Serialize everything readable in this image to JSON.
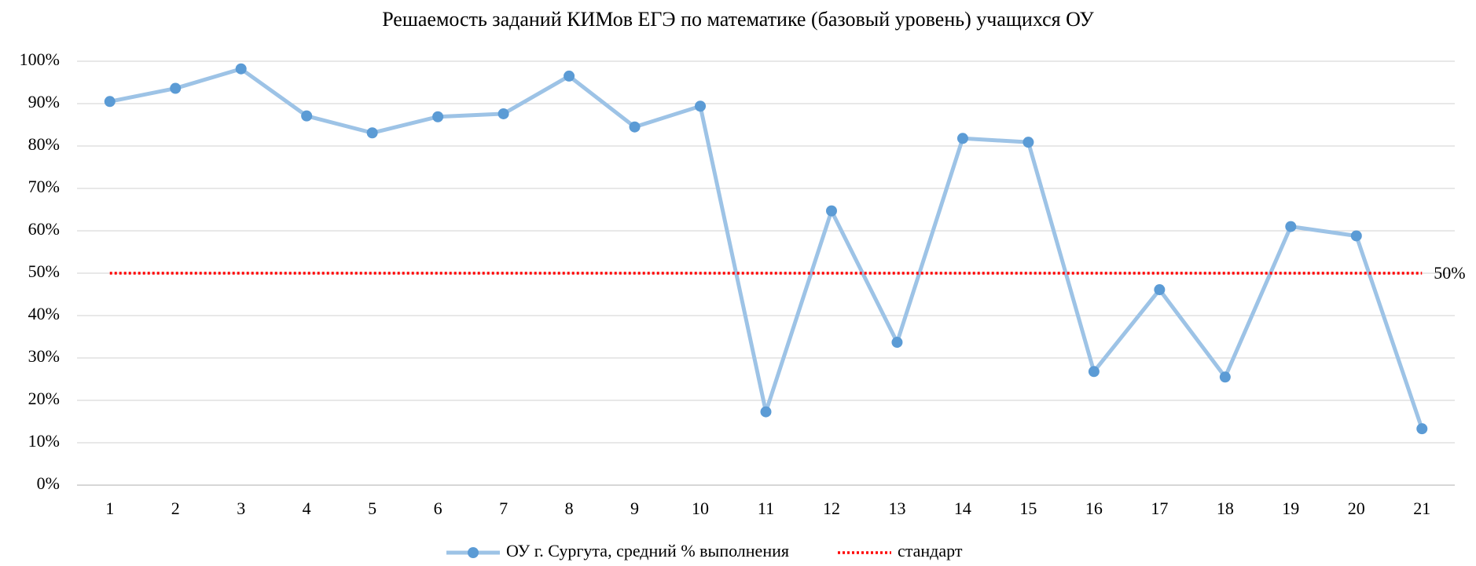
{
  "chart_data": {
    "type": "line",
    "title": "Решаемость заданий КИМов ЕГЭ по математике (базовый уровень) учащихся ОУ",
    "categories": [
      "1",
      "2",
      "3",
      "4",
      "5",
      "6",
      "7",
      "8",
      "9",
      "10",
      "11",
      "12",
      "13",
      "14",
      "15",
      "16",
      "17",
      "18",
      "19",
      "20",
      "21"
    ],
    "series": [
      {
        "name": "ОУ г. Сургута, средний % выполнения",
        "color": "#9dc3e6",
        "marker_color": "#5b9bd5",
        "style": "solid",
        "values": [
          90.5,
          93.6,
          98.2,
          87.1,
          83.1,
          86.9,
          87.6,
          96.5,
          84.5,
          89.4,
          17.3,
          64.7,
          33.7,
          81.8,
          80.9,
          26.8,
          46.1,
          25.5,
          61.0,
          58.8,
          13.3
        ]
      },
      {
        "name": "стандарт",
        "color": "#ff0000",
        "style": "dotted",
        "values": [
          50,
          50,
          50,
          50,
          50,
          50,
          50,
          50,
          50,
          50,
          50,
          50,
          50,
          50,
          50,
          50,
          50,
          50,
          50,
          50,
          50
        ],
        "value_labels": [
          null,
          null,
          null,
          null,
          null,
          null,
          null,
          null,
          null,
          null,
          null,
          null,
          null,
          null,
          null,
          null,
          null,
          null,
          null,
          null,
          "50%"
        ]
      }
    ],
    "ylim": [
      0,
      100
    ],
    "yticks": [
      {
        "value": 0,
        "label": "0%"
      },
      {
        "value": 10,
        "label": "10%"
      },
      {
        "value": 20,
        "label": "20%"
      },
      {
        "value": 30,
        "label": "30%"
      },
      {
        "value": 40,
        "label": "40%"
      },
      {
        "value": 50,
        "label": "50%"
      },
      {
        "value": 60,
        "label": "60%"
      },
      {
        "value": 70,
        "label": "70%"
      },
      {
        "value": 80,
        "label": "80%"
      },
      {
        "value": 90,
        "label": "90%"
      },
      {
        "value": 100,
        "label": "100%"
      }
    ],
    "grid": true,
    "legend": "bottom"
  }
}
